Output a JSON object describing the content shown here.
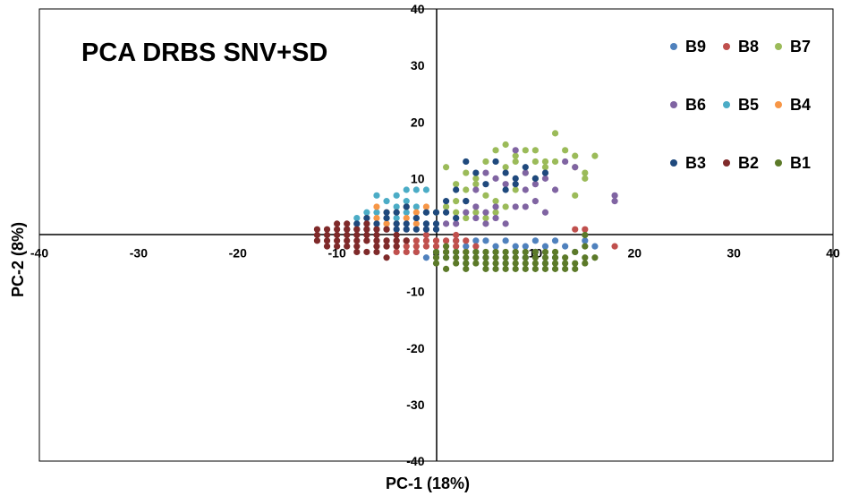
{
  "chart_data": {
    "type": "scatter",
    "title": "PCA DRBS SNV+SD",
    "xlabel": "PC-1 (18%)",
    "ylabel": "PC-2 (8%)",
    "xlim": [
      -40,
      40
    ],
    "ylim": [
      -40,
      40
    ],
    "x_ticks": [
      "-40",
      "-30",
      "-20",
      "-10",
      "0",
      "10",
      "20",
      "30",
      "40"
    ],
    "y_ticks": [
      "40",
      "30",
      "20",
      "10",
      "-10",
      "-20",
      "-30",
      "-40"
    ],
    "legend_position": "top-right",
    "series": [
      {
        "name": "B9",
        "color": "#4f81bd",
        "points": [
          [
            1,
            -4
          ],
          [
            2,
            -3
          ],
          [
            3,
            -2
          ],
          [
            4,
            -3
          ],
          [
            5,
            -1
          ],
          [
            6,
            -2
          ],
          [
            7,
            -1
          ],
          [
            8,
            -3
          ],
          [
            9,
            -2
          ],
          [
            10,
            -1
          ],
          [
            11,
            -2
          ],
          [
            12,
            -1
          ],
          [
            13,
            -2
          ],
          [
            14,
            -3
          ],
          [
            16,
            -2
          ],
          [
            3,
            -5
          ],
          [
            5,
            -4
          ],
          [
            7,
            -5
          ],
          [
            9,
            -4
          ],
          [
            11,
            -5
          ],
          [
            2,
            -1
          ],
          [
            4,
            -1
          ],
          [
            6,
            -3
          ],
          [
            8,
            -2
          ],
          [
            10,
            -3
          ],
          [
            12,
            -4
          ],
          [
            -2,
            -3
          ],
          [
            -1,
            -4
          ],
          [
            0,
            -3
          ],
          [
            15,
            -1
          ]
        ]
      },
      {
        "name": "B8",
        "color": "#c0504d",
        "points": [
          [
            -6,
            -1
          ],
          [
            -5,
            -2
          ],
          [
            -4,
            -1
          ],
          [
            -3,
            -2
          ],
          [
            -2,
            -1
          ],
          [
            -1,
            -2
          ],
          [
            0,
            -1
          ],
          [
            1,
            -1
          ],
          [
            2,
            -2
          ],
          [
            3,
            -1
          ],
          [
            -5,
            -1
          ],
          [
            -4,
            -2
          ],
          [
            -3,
            -1
          ],
          [
            -2,
            -2
          ],
          [
            -1,
            -1
          ],
          [
            0,
            -2
          ],
          [
            -6,
            -2
          ],
          [
            2,
            -1
          ],
          [
            4,
            -2
          ],
          [
            14,
            1
          ],
          [
            15,
            1
          ],
          [
            18,
            -2
          ],
          [
            -4,
            -3
          ],
          [
            -3,
            -3
          ],
          [
            -2,
            -3
          ],
          [
            1,
            -3
          ],
          [
            -7,
            -1
          ],
          [
            3,
            -3
          ],
          [
            2,
            0
          ],
          [
            -1,
            0
          ]
        ]
      },
      {
        "name": "B7",
        "color": "#9bbb59",
        "points": [
          [
            1,
            12
          ],
          [
            2,
            6
          ],
          [
            3,
            11
          ],
          [
            4,
            9
          ],
          [
            5,
            13
          ],
          [
            6,
            15
          ],
          [
            7,
            12
          ],
          [
            8,
            14
          ],
          [
            9,
            15
          ],
          [
            10,
            13
          ],
          [
            11,
            12
          ],
          [
            12,
            18
          ],
          [
            13,
            15
          ],
          [
            14,
            14
          ],
          [
            15,
            10
          ],
          [
            14,
            12
          ],
          [
            16,
            14
          ],
          [
            10,
            10
          ],
          [
            8,
            8
          ],
          [
            6,
            6
          ],
          [
            5,
            3
          ],
          [
            3,
            3
          ],
          [
            2,
            4
          ],
          [
            1,
            5
          ],
          [
            0,
            4
          ],
          [
            4,
            4
          ],
          [
            6,
            4
          ],
          [
            7,
            5
          ],
          [
            9,
            11
          ],
          [
            11,
            13
          ],
          [
            12,
            13
          ],
          [
            14,
            7
          ],
          [
            15,
            11
          ],
          [
            3,
            8
          ],
          [
            5,
            7
          ],
          [
            8,
            13
          ],
          [
            7,
            16
          ],
          [
            4,
            10
          ],
          [
            2,
            9
          ],
          [
            10,
            15
          ]
        ]
      },
      {
        "name": "B6",
        "color": "#8064a2",
        "points": [
          [
            3,
            6
          ],
          [
            4,
            8
          ],
          [
            5,
            11
          ],
          [
            6,
            5
          ],
          [
            7,
            9
          ],
          [
            8,
            15
          ],
          [
            9,
            11
          ],
          [
            10,
            9
          ],
          [
            11,
            10
          ],
          [
            12,
            8
          ],
          [
            13,
            13
          ],
          [
            14,
            12
          ],
          [
            18,
            7
          ],
          [
            18,
            6
          ],
          [
            10,
            6
          ],
          [
            9,
            5
          ],
          [
            6,
            3
          ],
          [
            5,
            4
          ],
          [
            4,
            3
          ],
          [
            3,
            4
          ],
          [
            2,
            2
          ],
          [
            1,
            2
          ],
          [
            2,
            3
          ],
          [
            8,
            5
          ],
          [
            11,
            4
          ],
          [
            7,
            2
          ],
          [
            5,
            2
          ],
          [
            9,
            8
          ],
          [
            6,
            10
          ],
          [
            4,
            5
          ]
        ]
      },
      {
        "name": "B5",
        "color": "#4bacc6",
        "points": [
          [
            -6,
            7
          ],
          [
            -5,
            6
          ],
          [
            -4,
            5
          ],
          [
            -3,
            4
          ],
          [
            -2,
            3
          ],
          [
            -1,
            2
          ],
          [
            -4,
            7
          ],
          [
            -3,
            6
          ],
          [
            -7,
            4
          ],
          [
            -8,
            3
          ],
          [
            -6,
            4
          ],
          [
            -5,
            3
          ],
          [
            -2,
            8
          ],
          [
            -3,
            8
          ],
          [
            -1,
            8
          ],
          [
            -5,
            2
          ],
          [
            -4,
            3
          ],
          [
            -6,
            2
          ],
          [
            -7,
            2
          ],
          [
            -8,
            2
          ],
          [
            -2,
            5
          ],
          [
            -1,
            4
          ]
        ]
      },
      {
        "name": "B4",
        "color": "#f79646",
        "points": [
          [
            -6,
            3
          ],
          [
            -5,
            2
          ],
          [
            -4,
            4
          ],
          [
            -3,
            3
          ],
          [
            -2,
            4
          ],
          [
            -1,
            5
          ],
          [
            -5,
            4
          ],
          [
            -6,
            5
          ],
          [
            -7,
            3
          ],
          [
            -4,
            2
          ],
          [
            -2,
            2
          ],
          [
            -3,
            5
          ]
        ]
      },
      {
        "name": "B3",
        "color": "#1f497d",
        "points": [
          [
            -9,
            1
          ],
          [
            -8,
            2
          ],
          [
            -7,
            3
          ],
          [
            -6,
            2
          ],
          [
            -5,
            3
          ],
          [
            -4,
            4
          ],
          [
            -3,
            5
          ],
          [
            -2,
            3
          ],
          [
            -1,
            4
          ],
          [
            0,
            4
          ],
          [
            1,
            6
          ],
          [
            2,
            8
          ],
          [
            3,
            13
          ],
          [
            4,
            11
          ],
          [
            5,
            9
          ],
          [
            6,
            13
          ],
          [
            7,
            11
          ],
          [
            8,
            9
          ],
          [
            9,
            12
          ],
          [
            10,
            10
          ],
          [
            -5,
            1
          ],
          [
            -4,
            2
          ],
          [
            -3,
            2
          ],
          [
            -2,
            1
          ],
          [
            -1,
            2
          ],
          [
            -6,
            1
          ],
          [
            -7,
            1
          ],
          [
            -8,
            1
          ],
          [
            0,
            2
          ],
          [
            -3,
            1
          ],
          [
            1,
            4
          ],
          [
            2,
            3
          ],
          [
            3,
            6
          ],
          [
            7,
            8
          ],
          [
            8,
            10
          ],
          [
            11,
            11
          ],
          [
            -1,
            1
          ],
          [
            0,
            1
          ],
          [
            -4,
            1
          ],
          [
            -5,
            4
          ]
        ]
      },
      {
        "name": "B2",
        "color": "#7f2a2a",
        "points": [
          [
            -12,
            0
          ],
          [
            -11,
            -1
          ],
          [
            -10,
            0
          ],
          [
            -9,
            -1
          ],
          [
            -8,
            0
          ],
          [
            -7,
            -1
          ],
          [
            -6,
            0
          ],
          [
            -5,
            -1
          ],
          [
            -4,
            0
          ],
          [
            -11,
            1
          ],
          [
            -10,
            -2
          ],
          [
            -9,
            1
          ],
          [
            -8,
            -2
          ],
          [
            -7,
            1
          ],
          [
            -6,
            -2
          ],
          [
            -5,
            1
          ],
          [
            -12,
            -1
          ],
          [
            -11,
            -2
          ],
          [
            -10,
            1
          ],
          [
            -9,
            -2
          ],
          [
            -8,
            1
          ],
          [
            -7,
            -3
          ],
          [
            -6,
            -3
          ],
          [
            -5,
            -4
          ],
          [
            -4,
            -2
          ],
          [
            -3,
            -1
          ],
          [
            -10,
            -1
          ],
          [
            -9,
            0
          ],
          [
            -8,
            -1
          ],
          [
            -7,
            0
          ],
          [
            -6,
            -1
          ],
          [
            -11,
            0
          ],
          [
            -12,
            1
          ],
          [
            -9,
            2
          ],
          [
            -7,
            2
          ],
          [
            -5,
            -2
          ],
          [
            -4,
            -1
          ],
          [
            -8,
            -3
          ],
          [
            -10,
            2
          ],
          [
            -6,
            1
          ]
        ]
      },
      {
        "name": "B1",
        "color": "#5c7a29",
        "points": [
          [
            0,
            -3
          ],
          [
            1,
            -4
          ],
          [
            2,
            -5
          ],
          [
            3,
            -4
          ],
          [
            4,
            -5
          ],
          [
            5,
            -6
          ],
          [
            6,
            -5
          ],
          [
            7,
            -6
          ],
          [
            8,
            -5
          ],
          [
            9,
            -6
          ],
          [
            10,
            -5
          ],
          [
            11,
            -6
          ],
          [
            12,
            -5
          ],
          [
            13,
            -6
          ],
          [
            14,
            -5
          ],
          [
            15,
            -4
          ],
          [
            15,
            -2
          ],
          [
            14,
            -3
          ],
          [
            13,
            -4
          ],
          [
            12,
            -3
          ],
          [
            11,
            -4
          ],
          [
            10,
            -3
          ],
          [
            9,
            -4
          ],
          [
            8,
            -3
          ],
          [
            7,
            -4
          ],
          [
            6,
            -3
          ],
          [
            5,
            -4
          ],
          [
            4,
            -3
          ],
          [
            3,
            -3
          ],
          [
            2,
            -3
          ],
          [
            1,
            -2
          ],
          [
            0,
            -5
          ],
          [
            1,
            -6
          ],
          [
            2,
            -4
          ],
          [
            3,
            -6
          ],
          [
            4,
            -4
          ],
          [
            5,
            -3
          ],
          [
            6,
            -6
          ],
          [
            7,
            -3
          ],
          [
            8,
            -6
          ],
          [
            9,
            -5
          ],
          [
            10,
            -4
          ],
          [
            11,
            -3
          ],
          [
            12,
            -6
          ],
          [
            13,
            -5
          ],
          [
            14,
            -6
          ],
          [
            15,
            -5
          ],
          [
            16,
            -4
          ],
          [
            6,
            -4
          ],
          [
            7,
            -5
          ],
          [
            8,
            -4
          ],
          [
            9,
            -3
          ],
          [
            10,
            -6
          ],
          [
            11,
            -5
          ],
          [
            12,
            -4
          ],
          [
            3,
            -5
          ],
          [
            5,
            -5
          ],
          [
            0,
            -4
          ],
          [
            15,
            0
          ],
          [
            1,
            -3
          ]
        ]
      }
    ]
  }
}
